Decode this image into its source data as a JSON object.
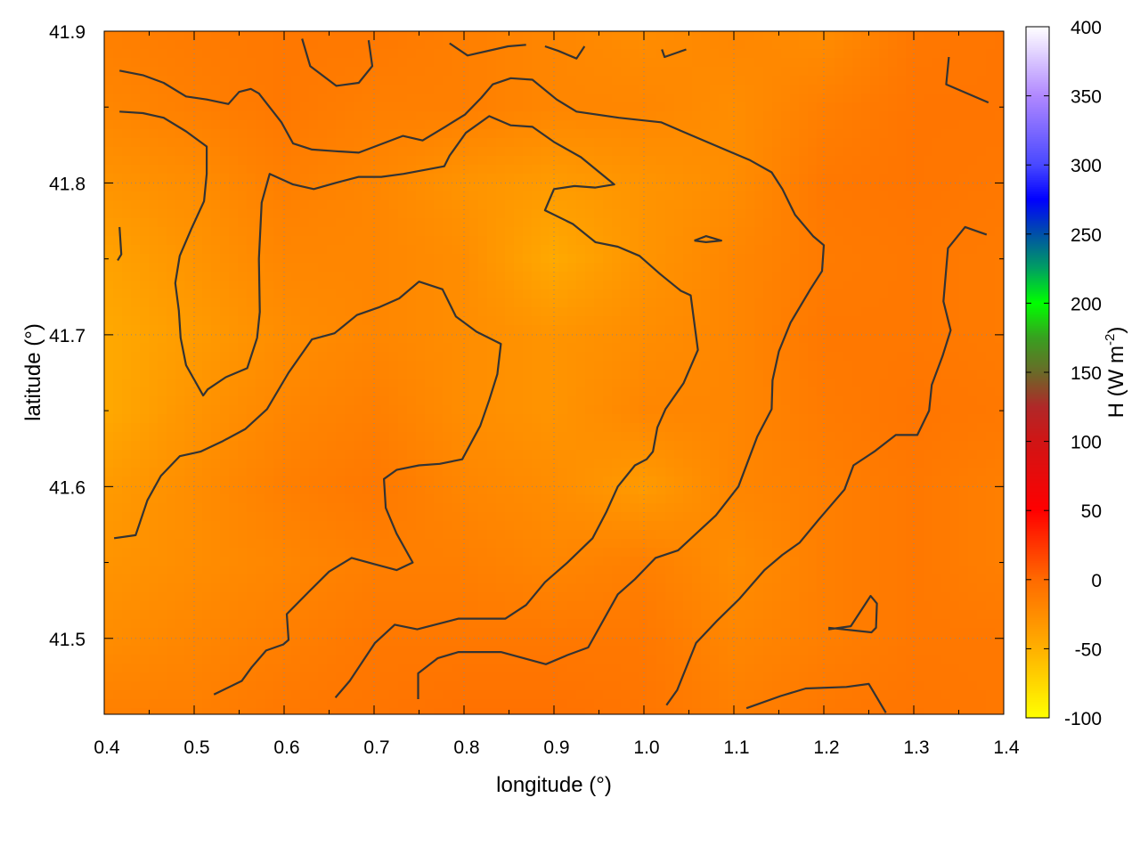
{
  "chart_data": {
    "type": "heatmap",
    "title": "",
    "xlabel": "longitude (°)",
    "ylabel": "latitude (°)",
    "xlim": [
      0.4,
      1.4
    ],
    "ylim": [
      41.45,
      41.9
    ],
    "xticks": [
      "0.4",
      "0.5",
      "0.6",
      "0.7",
      "0.8",
      "0.9",
      "1.0",
      "1.1",
      "1.2",
      "1.3",
      "1.4"
    ],
    "yticks": [
      "41.5",
      "41.6",
      "41.7",
      "41.8",
      "41.9"
    ],
    "grid": true,
    "colorbar": {
      "label": "H (W m",
      "label_sup": "-2",
      "label_close": ")",
      "range": [
        -100,
        400
      ],
      "ticks": [
        "-100",
        "-50",
        "0",
        "50",
        "100",
        "150",
        "200",
        "250",
        "300",
        "350",
        "400"
      ],
      "colormap": [
        [
          -100,
          "#ffff00"
        ],
        [
          -50,
          "#ffb000"
        ],
        [
          0,
          "#ff6a00"
        ],
        [
          50,
          "#ff0000"
        ],
        [
          100,
          "#d01515"
        ],
        [
          125,
          "#b02828"
        ],
        [
          150,
          "#6a6a28"
        ],
        [
          175,
          "#38a020"
        ],
        [
          200,
          "#00ff00"
        ],
        [
          225,
          "#00a060"
        ],
        [
          250,
          "#0050a8"
        ],
        [
          275,
          "#0000ff"
        ],
        [
          300,
          "#4848ff"
        ],
        [
          350,
          "#b088ff"
        ],
        [
          400,
          "#ffffff"
        ]
      ]
    },
    "heatmap": {
      "lon": [
        0.4,
        0.5,
        0.6,
        0.7,
        0.8,
        0.9,
        1.0,
        1.1,
        1.2,
        1.3,
        1.4
      ],
      "lat": [
        41.9,
        41.85,
        41.8,
        41.75,
        41.7,
        41.65,
        41.6,
        41.55,
        41.5,
        41.45
      ],
      "values": [
        [
          -15,
          -12,
          -10,
          -10,
          -15,
          -20,
          -25,
          -20,
          -25,
          -10,
          -8
        ],
        [
          -20,
          -15,
          -10,
          -15,
          -15,
          -20,
          -20,
          -25,
          -15,
          -8,
          -8
        ],
        [
          -30,
          -25,
          -15,
          -20,
          -30,
          -35,
          -30,
          -25,
          -10,
          -8,
          -10
        ],
        [
          -40,
          -30,
          -20,
          -20,
          -25,
          -45,
          -30,
          -20,
          -12,
          -10,
          -12
        ],
        [
          -45,
          -35,
          -25,
          -20,
          -25,
          -30,
          -25,
          -20,
          -10,
          -10,
          -12
        ],
        [
          -45,
          -30,
          -20,
          -15,
          -25,
          -30,
          -20,
          -20,
          -12,
          -8,
          -10
        ],
        [
          -35,
          -25,
          -15,
          -10,
          -20,
          -25,
          -35,
          -20,
          -15,
          -10,
          -15
        ],
        [
          -30,
          -25,
          -20,
          -15,
          -15,
          -20,
          -15,
          -25,
          -15,
          -10,
          -15
        ],
        [
          -25,
          -20,
          -15,
          -10,
          -10,
          -10,
          -10,
          -20,
          -15,
          -10,
          -10
        ],
        [
          -15,
          -15,
          -10,
          -8,
          -5,
          -5,
          -8,
          -15,
          -10,
          -8,
          -10
        ]
      ]
    },
    "contour_color": "#333333",
    "contours": [
      [
        [
          0.417,
          41.874
        ],
        [
          0.443,
          41.871
        ],
        [
          0.466,
          41.866
        ],
        [
          0.491,
          41.857
        ],
        [
          0.514,
          41.855
        ],
        [
          0.538,
          41.852
        ],
        [
          0.55,
          41.86
        ],
        [
          0.563,
          41.862
        ],
        [
          0.572,
          41.859
        ],
        [
          0.597,
          41.84
        ],
        [
          0.61,
          41.826
        ],
        [
          0.631,
          41.822
        ],
        [
          0.656,
          41.821
        ],
        [
          0.683,
          41.82
        ],
        [
          0.701,
          41.824
        ],
        [
          0.732,
          41.831
        ],
        [
          0.754,
          41.828
        ],
        [
          0.779,
          41.837
        ],
        [
          0.801,
          41.845
        ],
        [
          0.819,
          41.856
        ],
        [
          0.832,
          41.865
        ],
        [
          0.852,
          41.869
        ],
        [
          0.876,
          41.868
        ],
        [
          0.903,
          41.855
        ],
        [
          0.925,
          41.847
        ],
        [
          0.972,
          41.843
        ],
        [
          1.019,
          41.84
        ],
        [
          1.098,
          41.82
        ],
        [
          1.118,
          41.815
        ],
        [
          1.142,
          41.807
        ],
        [
          1.154,
          41.796
        ],
        [
          1.168,
          41.779
        ],
        [
          1.188,
          41.765
        ],
        [
          1.2,
          41.759
        ],
        [
          1.198,
          41.742
        ],
        [
          1.185,
          41.73
        ],
        [
          1.163,
          41.708
        ],
        [
          1.15,
          41.689
        ],
        [
          1.143,
          41.67
        ],
        [
          1.142,
          41.651
        ],
        [
          1.126,
          41.633
        ],
        [
          1.105,
          41.6
        ],
        [
          1.08,
          41.581
        ],
        [
          1.058,
          41.569
        ],
        [
          1.038,
          41.558
        ],
        [
          1.013,
          41.553
        ],
        [
          0.99,
          41.539
        ],
        [
          0.971,
          41.529
        ],
        [
          0.938,
          41.494
        ],
        [
          0.915,
          41.489
        ],
        [
          0.891,
          41.483
        ],
        [
          0.841,
          41.491
        ],
        [
          0.794,
          41.491
        ],
        [
          0.771,
          41.487
        ],
        [
          0.749,
          41.477
        ],
        [
          0.749,
          41.46
        ]
      ],
      [
        [
          0.417,
          41.847
        ],
        [
          0.443,
          41.846
        ],
        [
          0.466,
          41.843
        ],
        [
          0.491,
          41.834
        ],
        [
          0.514,
          41.824
        ],
        [
          0.514,
          41.806
        ],
        [
          0.511,
          41.788
        ],
        [
          0.497,
          41.77
        ],
        [
          0.484,
          41.752
        ],
        [
          0.479,
          41.734
        ],
        [
          0.483,
          41.716
        ],
        [
          0.485,
          41.698
        ],
        [
          0.491,
          41.68
        ],
        [
          0.51,
          41.66
        ],
        [
          0.515,
          41.664
        ],
        [
          0.535,
          41.672
        ],
        [
          0.559,
          41.678
        ],
        [
          0.57,
          41.698
        ],
        [
          0.573,
          41.715
        ],
        [
          0.572,
          41.75
        ],
        [
          0.575,
          41.787
        ],
        [
          0.584,
          41.806
        ],
        [
          0.61,
          41.799
        ],
        [
          0.633,
          41.796
        ],
        [
          0.657,
          41.8
        ],
        [
          0.683,
          41.804
        ],
        [
          0.708,
          41.804
        ],
        [
          0.733,
          41.806
        ],
        [
          0.778,
          41.811
        ],
        [
          0.784,
          41.818
        ],
        [
          0.802,
          41.833
        ],
        [
          0.828,
          41.844
        ],
        [
          0.852,
          41.838
        ],
        [
          0.876,
          41.837
        ],
        [
          0.9,
          41.827
        ],
        [
          0.93,
          41.817
        ],
        [
          0.967,
          41.799
        ],
        [
          0.946,
          41.797
        ],
        [
          0.923,
          41.798
        ],
        [
          0.9,
          41.796
        ],
        [
          0.89,
          41.782
        ],
        [
          0.921,
          41.773
        ],
        [
          0.946,
          41.761
        ],
        [
          0.971,
          41.758
        ],
        [
          0.995,
          41.752
        ],
        [
          1.018,
          41.74
        ],
        [
          1.041,
          41.729
        ],
        [
          1.052,
          41.726
        ],
        [
          1.06,
          41.69
        ],
        [
          1.044,
          41.668
        ],
        [
          1.024,
          41.651
        ],
        [
          1.015,
          41.639
        ],
        [
          1.01,
          41.623
        ],
        [
          1.003,
          41.618
        ],
        [
          0.99,
          41.614
        ],
        [
          0.971,
          41.6
        ],
        [
          0.958,
          41.583
        ],
        [
          0.943,
          41.566
        ],
        [
          0.915,
          41.55
        ],
        [
          0.89,
          41.537
        ],
        [
          0.869,
          41.522
        ],
        [
          0.846,
          41.513
        ],
        [
          0.794,
          41.513
        ],
        [
          0.748,
          41.506
        ],
        [
          0.723,
          41.509
        ],
        [
          0.701,
          41.497
        ],
        [
          0.673,
          41.472
        ],
        [
          0.657,
          41.461
        ]
      ],
      [
        [
          0.411,
          41.566
        ],
        [
          0.435,
          41.568
        ],
        [
          0.448,
          41.591
        ],
        [
          0.463,
          41.607
        ],
        [
          0.484,
          41.62
        ],
        [
          0.507,
          41.623
        ],
        [
          0.532,
          41.63
        ],
        [
          0.557,
          41.638
        ],
        [
          0.581,
          41.651
        ],
        [
          0.605,
          41.675
        ],
        [
          0.631,
          41.697
        ],
        [
          0.656,
          41.701
        ],
        [
          0.681,
          41.713
        ],
        [
          0.705,
          41.718
        ],
        [
          0.728,
          41.724
        ],
        [
          0.75,
          41.735
        ],
        [
          0.776,
          41.73
        ],
        [
          0.791,
          41.712
        ],
        [
          0.814,
          41.702
        ],
        [
          0.841,
          41.694
        ],
        [
          0.837,
          41.674
        ],
        [
          0.828,
          41.657
        ],
        [
          0.818,
          41.64
        ],
        [
          0.798,
          41.618
        ],
        [
          0.773,
          41.615
        ],
        [
          0.75,
          41.614
        ],
        [
          0.725,
          41.611
        ],
        [
          0.711,
          41.605
        ],
        [
          0.713,
          41.586
        ],
        [
          0.725,
          41.569
        ],
        [
          0.743,
          41.55
        ],
        [
          0.725,
          41.545
        ],
        [
          0.7,
          41.549
        ],
        [
          0.675,
          41.553
        ],
        [
          0.65,
          41.544
        ],
        [
          0.628,
          41.531
        ],
        [
          0.603,
          41.516
        ],
        [
          0.605,
          41.499
        ],
        [
          0.599,
          41.496
        ],
        [
          0.58,
          41.492
        ],
        [
          0.564,
          41.481
        ],
        [
          0.553,
          41.472
        ],
        [
          0.522,
          41.463
        ]
      ],
      [
        [
          1.025,
          41.456
        ],
        [
          1.037,
          41.466
        ],
        [
          1.058,
          41.497
        ],
        [
          1.082,
          41.512
        ],
        [
          1.106,
          41.526
        ],
        [
          1.134,
          41.545
        ],
        [
          1.154,
          41.555
        ],
        [
          1.173,
          41.563
        ],
        [
          1.194,
          41.578
        ],
        [
          1.223,
          41.598
        ],
        [
          1.233,
          41.614
        ],
        [
          1.256,
          41.623
        ],
        [
          1.28,
          41.634
        ],
        [
          1.304,
          41.634
        ],
        [
          1.317,
          41.65
        ],
        [
          1.32,
          41.667
        ],
        [
          1.332,
          41.686
        ],
        [
          1.341,
          41.703
        ],
        [
          1.333,
          41.722
        ],
        [
          1.338,
          41.757
        ],
        [
          1.357,
          41.771
        ],
        [
          1.381,
          41.766
        ]
      ],
      [
        [
          1.114,
          41.454
        ],
        [
          1.152,
          41.462
        ],
        [
          1.18,
          41.467
        ],
        [
          1.225,
          41.468
        ],
        [
          1.25,
          41.47
        ],
        [
          1.269,
          41.451
        ]
      ],
      [
        [
          1.205,
          41.506
        ],
        [
          1.23,
          41.508
        ],
        [
          1.252,
          41.528
        ],
        [
          1.259,
          41.523
        ],
        [
          1.258,
          41.507
        ],
        [
          1.253,
          41.504
        ],
        [
          1.205,
          41.507
        ]
      ],
      [
        [
          0.62,
          41.895
        ],
        [
          0.629,
          41.877
        ],
        [
          0.658,
          41.864
        ],
        [
          0.683,
          41.866
        ],
        [
          0.698,
          41.877
        ],
        [
          0.694,
          41.894
        ]
      ],
      [
        [
          0.784,
          41.892
        ],
        [
          0.804,
          41.884
        ],
        [
          0.849,
          41.89
        ],
        [
          0.869,
          41.891
        ]
      ],
      [
        [
          0.89,
          41.89
        ],
        [
          0.905,
          41.887
        ],
        [
          0.925,
          41.882
        ],
        [
          0.934,
          41.89
        ]
      ],
      [
        [
          1.02,
          41.888
        ],
        [
          1.023,
          41.883
        ],
        [
          1.047,
          41.888
        ]
      ],
      [
        [
          1.339,
          41.883
        ],
        [
          1.336,
          41.865
        ],
        [
          1.383,
          41.853
        ]
      ],
      [
        [
          0.417,
          41.771
        ],
        [
          0.419,
          41.753
        ],
        [
          0.415,
          41.749
        ]
      ],
      [
        [
          1.056,
          41.762
        ],
        [
          1.069,
          41.765
        ],
        [
          1.086,
          41.762
        ],
        [
          1.069,
          41.761
        ],
        [
          1.056,
          41.762
        ]
      ]
    ]
  }
}
